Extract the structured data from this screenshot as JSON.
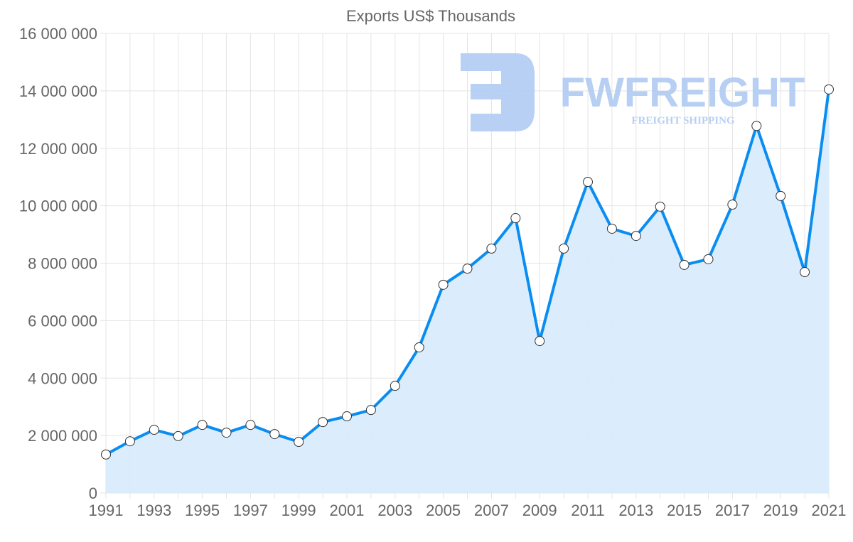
{
  "chart_data": {
    "type": "line",
    "title": "Exports US$ Thousands",
    "xlabel": "",
    "ylabel": "",
    "ylim": [
      0,
      16000000
    ],
    "yticks": [
      0,
      2000000,
      4000000,
      6000000,
      8000000,
      10000000,
      12000000,
      14000000,
      16000000
    ],
    "ytick_labels": [
      "0",
      "2 000 000",
      "4 000 000",
      "6 000 000",
      "8 000 000",
      "10 000 000",
      "12 000 000",
      "14 000 000",
      "16 000 000"
    ],
    "x": [
      1991,
      1992,
      1993,
      1994,
      1995,
      1996,
      1997,
      1998,
      1999,
      2000,
      2001,
      2002,
      2003,
      2004,
      2005,
      2006,
      2007,
      2008,
      2009,
      2010,
      2011,
      2012,
      2013,
      2014,
      2015,
      2016,
      2017,
      2018,
      2019,
      2020,
      2021
    ],
    "xtick_labels": [
      "1991",
      "1993",
      "1995",
      "1997",
      "1999",
      "2001",
      "2003",
      "2005",
      "2007",
      "2009",
      "2011",
      "2013",
      "2015",
      "2017",
      "2019",
      "2021"
    ],
    "grid": true,
    "fill": true,
    "series": [
      {
        "name": "Exports US$ Thousands",
        "color": "#0a8df2",
        "fill_color": "#d9ecfd",
        "values": [
          1340000,
          1800000,
          2200000,
          1980000,
          2370000,
          2100000,
          2370000,
          2050000,
          1780000,
          2470000,
          2670000,
          2890000,
          3730000,
          5070000,
          7250000,
          7810000,
          8510000,
          9570000,
          5290000,
          8510000,
          10830000,
          9200000,
          8950000,
          9970000,
          7940000,
          8140000,
          10040000,
          12780000,
          10340000,
          7690000,
          14050000
        ]
      }
    ]
  },
  "watermark": {
    "logo_text": "FWFREIGHT",
    "tagline": "FREIGHT SHIPPING",
    "color": "#b3cdf3"
  }
}
